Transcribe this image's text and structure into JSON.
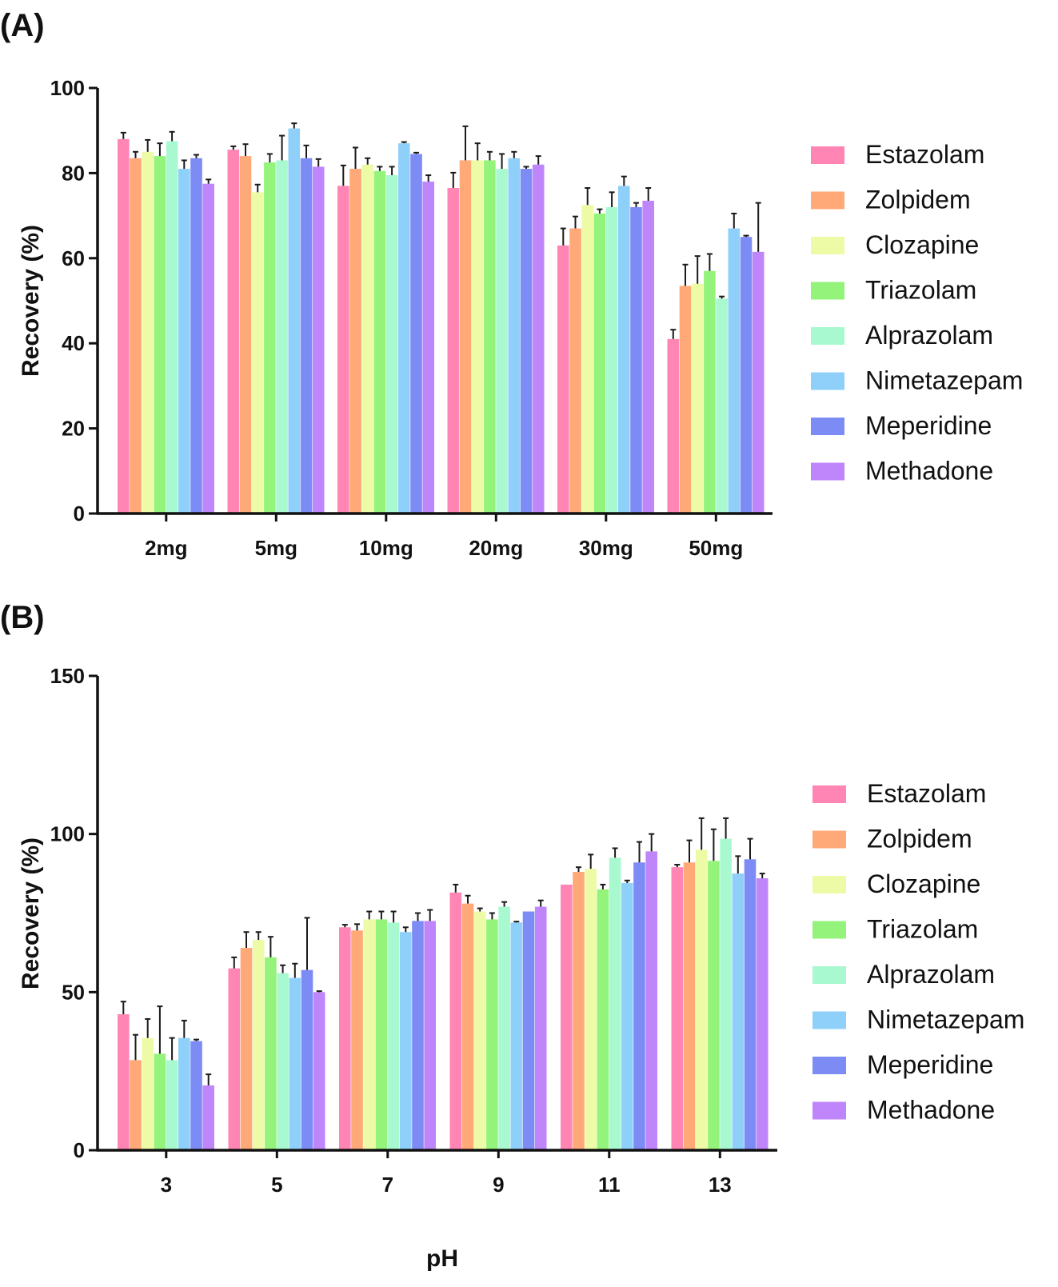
{
  "legend": {
    "entries": [
      "Estazolam",
      "Zolpidem",
      "Clozapine",
      "Triazolam",
      "Alprazolam",
      "Nimetazepam",
      "Meperidine",
      "Methadone"
    ]
  },
  "colors": {
    "Estazolam": "#FF85B4",
    "Zolpidem": "#FFA878",
    "Clozapine": "#EEFBA6",
    "Triazolam": "#93F37A",
    "Alprazolam": "#A8F9CF",
    "Nimetazepam": "#8FD0FA",
    "Meperidine": "#7C8CF4",
    "Methadone": "#BE86FA",
    "error_bar": "#1a1a1a",
    "axis": "#111111"
  },
  "chart_data": [
    {
      "type": "bar",
      "panel_label": "(A)",
      "title": "",
      "xlabel": "",
      "ylabel": "Recovery (%)",
      "ylim": [
        0,
        100
      ],
      "yticks": [
        0,
        20,
        40,
        60,
        80,
        100
      ],
      "categories": [
        "2mg",
        "5mg",
        "10mg",
        "20mg",
        "30mg",
        "50mg"
      ],
      "legend_position": "right",
      "grid": false,
      "series": [
        {
          "name": "Estazolam",
          "values": [
            88,
            85.5,
            77,
            76.5,
            63,
            41
          ],
          "errors": [
            1.5,
            0.8,
            4.8,
            3.6,
            4,
            2.2
          ]
        },
        {
          "name": "Zolpidem",
          "values": [
            83.5,
            84,
            81,
            83,
            67,
            53.5
          ],
          "errors": [
            1.5,
            2.8,
            5,
            8,
            2.8,
            5
          ]
        },
        {
          "name": "Clozapine",
          "values": [
            85,
            75.5,
            82,
            83,
            72.5,
            54
          ],
          "errors": [
            2.8,
            1.8,
            1.5,
            4,
            4,
            6.5
          ]
        },
        {
          "name": "Triazolam",
          "values": [
            84,
            82.5,
            80.5,
            83,
            70.5,
            57
          ],
          "errors": [
            3,
            2,
            1,
            2,
            1,
            4
          ]
        },
        {
          "name": "Alprazolam",
          "values": [
            87.5,
            83,
            79.5,
            81,
            72,
            50.5
          ],
          "errors": [
            2.2,
            5.8,
            2,
            3.5,
            3.5,
            0.5
          ]
        },
        {
          "name": "Nimetazepam",
          "values": [
            81,
            90.5,
            87,
            83.5,
            77,
            67
          ],
          "errors": [
            2,
            1.2,
            0.3,
            1.5,
            2.2,
            3.5
          ]
        },
        {
          "name": "Meperidine",
          "values": [
            83.5,
            83.5,
            84.5,
            81,
            72,
            65
          ],
          "errors": [
            0.8,
            3,
            0.3,
            0.5,
            1,
            0.3
          ]
        },
        {
          "name": "Methadone",
          "values": [
            77.5,
            81.5,
            78,
            82,
            73.5,
            61.5
          ],
          "errors": [
            1,
            1.8,
            1.5,
            2,
            3,
            11.5
          ]
        }
      ]
    },
    {
      "type": "bar",
      "panel_label": "(B)",
      "title": "",
      "xlabel": "pH",
      "ylabel": "Recovery (%)",
      "ylim": [
        0,
        150
      ],
      "yticks": [
        0,
        50,
        100,
        150
      ],
      "categories": [
        "3",
        "5",
        "7",
        "9",
        "11",
        "13"
      ],
      "legend_position": "right",
      "grid": false,
      "series": [
        {
          "name": "Estazolam",
          "values": [
            43,
            57.5,
            70.5,
            81.5,
            84,
            89.5
          ],
          "errors": [
            4,
            3.5,
            0.8,
            2.5,
            0,
            0.8
          ]
        },
        {
          "name": "Zolpidem",
          "values": [
            28.5,
            64,
            69.5,
            78,
            88,
            91
          ],
          "errors": [
            8,
            5,
            2,
            2.5,
            1.5,
            7
          ]
        },
        {
          "name": "Clozapine",
          "values": [
            35.5,
            66.5,
            73,
            75.5,
            89,
            95
          ],
          "errors": [
            6,
            2.5,
            2.5,
            1,
            4.5,
            10
          ]
        },
        {
          "name": "Triazolam",
          "values": [
            30.5,
            61,
            73,
            73,
            82.5,
            91.5
          ],
          "errors": [
            15,
            6.5,
            2.5,
            2,
            1.5,
            10
          ]
        },
        {
          "name": "Alprazolam",
          "values": [
            28.5,
            56,
            72,
            77,
            92.5,
            98.5
          ],
          "errors": [
            7,
            2.5,
            3.5,
            1.5,
            3,
            6.5
          ]
        },
        {
          "name": "Nimetazepam",
          "values": [
            35.5,
            54.5,
            69,
            72,
            84.5,
            87.5
          ],
          "errors": [
            5.5,
            4.5,
            1.5,
            0.3,
            0.8,
            5.5
          ]
        },
        {
          "name": "Meperidine",
          "values": [
            34.5,
            57,
            72.5,
            75.5,
            91,
            92
          ],
          "errors": [
            0.5,
            16.5,
            2.5,
            0,
            6.5,
            6.5
          ]
        },
        {
          "name": "Methadone",
          "values": [
            20.5,
            50,
            72.5,
            77,
            94.5,
            86
          ],
          "errors": [
            3.5,
            0.3,
            3.5,
            2,
            5.5,
            1.5
          ]
        }
      ]
    }
  ]
}
